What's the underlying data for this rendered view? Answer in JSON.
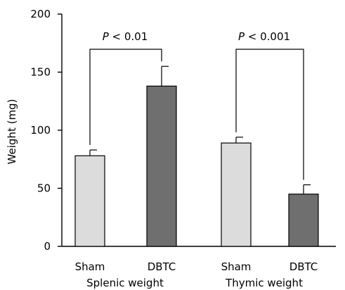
{
  "chart_data": {
    "type": "bar",
    "ylabel": "Weight (mg)",
    "ylim": [
      0,
      200
    ],
    "yticks": [
      0,
      50,
      100,
      150,
      200
    ],
    "groups": [
      {
        "label": "Splenic weight",
        "bars": [
          {
            "label": "Sham",
            "value": 78,
            "error": 5,
            "color": "#dcdcdc"
          },
          {
            "label": "DBTC",
            "value": 138,
            "error": 17,
            "color": "#6f6f6f"
          }
        ],
        "annotation": {
          "p_symbol": "P",
          "p_rest": " < 0.01"
        }
      },
      {
        "label": "Thymic weight",
        "bars": [
          {
            "label": "Sham",
            "value": 89,
            "error": 5,
            "color": "#dcdcdc"
          },
          {
            "label": "DBTC",
            "value": 45,
            "error": 8,
            "color": "#6f6f6f"
          }
        ],
        "annotation": {
          "p_symbol": "P",
          "p_rest": " < 0.001"
        }
      }
    ],
    "grid": false
  }
}
